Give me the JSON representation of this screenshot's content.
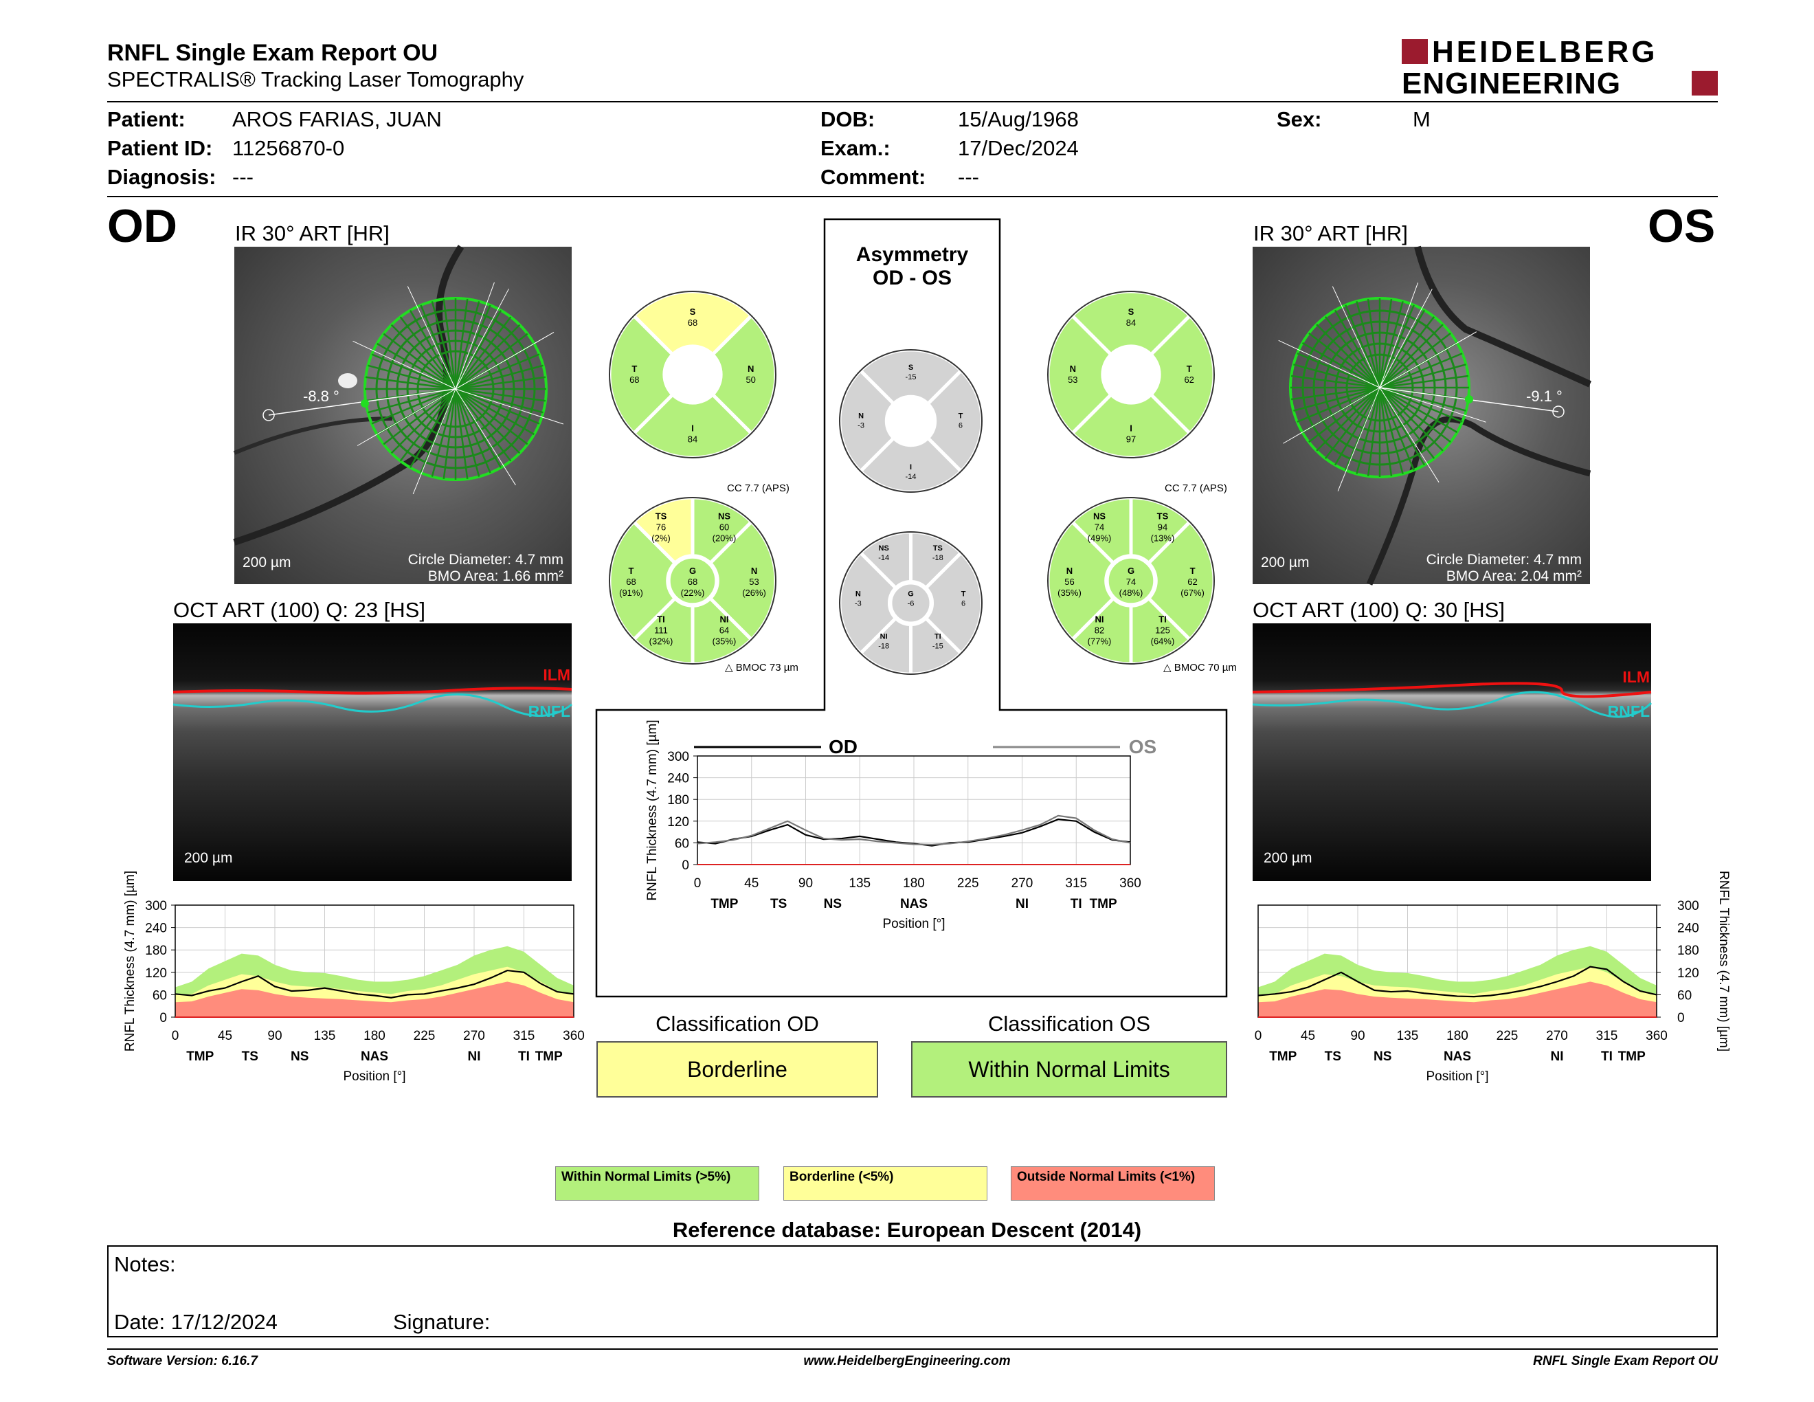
{
  "header": {
    "title": "RNFL Single Exam Report OU",
    "subtitle": "SPECTRALIS® Tracking Laser Tomography",
    "logo_line1": "HEIDELBERG",
    "logo_line2": "ENGINEERING"
  },
  "patient": {
    "patient_label": "Patient:",
    "patient": "AROS FARIAS, JUAN",
    "id_label": "Patient ID:",
    "id": "11256870-0",
    "diagnosis_label": "Diagnosis:",
    "diagnosis": "---",
    "dob_label": "DOB:",
    "dob": "15/Aug/1968",
    "exam_label": "Exam.:",
    "exam": "17/Dec/2024",
    "comment_label": "Comment:",
    "comment": "---",
    "sex_label": "Sex:",
    "sex": "M"
  },
  "od": {
    "eye": "OD",
    "ir_title": "IR 30° ART [HR]",
    "angle": "-8.8 °",
    "scale": "200 µm",
    "circle_diameter": "Circle Diameter: 4.7 mm",
    "bmo_area": "BMO Area: 1.66 mm²",
    "oct_title": "OCT ART (100) Q: 23 [HS]",
    "oct_scale": "200 µm",
    "classification_title": "Classification OD",
    "classification": "Borderline",
    "cc": "CC 7.7 (APS)",
    "bmoc": "BMOC 73 µm",
    "quad": {
      "S": "68",
      "T": "68",
      "N": "50",
      "I": "84"
    },
    "sectors": {
      "TS": [
        "TS",
        "76",
        "(2%)"
      ],
      "NS": [
        "NS",
        "60",
        "(20%)"
      ],
      "T": [
        "T",
        "68",
        "(91%)"
      ],
      "G": [
        "G",
        "68",
        "(22%)"
      ],
      "N": [
        "N",
        "53",
        "(26%)"
      ],
      "TI": [
        "TI",
        "111",
        "(32%)"
      ],
      "NI": [
        "NI",
        "64",
        "(35%)"
      ]
    }
  },
  "os": {
    "eye": "OS",
    "ir_title": "IR 30° ART [HR]",
    "angle": "-9.1 °",
    "scale": "200 µm",
    "circle_diameter": "Circle Diameter: 4.7 mm",
    "bmo_area": "BMO Area: 2.04 mm²",
    "oct_title": "OCT ART (100) Q: 30 [HS]",
    "oct_scale": "200 µm",
    "classification_title": "Classification OS",
    "classification": "Within Normal Limits",
    "cc": "CC 7.7 (APS)",
    "bmoc": "BMOC 70 µm",
    "quad": {
      "S": "84",
      "N": "53",
      "T": "62",
      "I": "97"
    },
    "sectors": {
      "NS": [
        "NS",
        "74",
        "(49%)"
      ],
      "TS": [
        "TS",
        "94",
        "(13%)"
      ],
      "N": [
        "N",
        "56",
        "(35%)"
      ],
      "G": [
        "G",
        "74",
        "(48%)"
      ],
      "T": [
        "T",
        "62",
        "(67%)"
      ],
      "NI": [
        "NI",
        "82",
        "(77%)"
      ],
      "TI": [
        "TI",
        "125",
        "(64%)"
      ]
    }
  },
  "asym": {
    "title1": "Asymmetry",
    "title2": "OD - OS",
    "quad": {
      "S": "-15",
      "N": "-3",
      "T": "6",
      "I": "-14"
    },
    "sectors": {
      "NS": [
        "NS",
        "-14"
      ],
      "TS": [
        "TS",
        "-18"
      ],
      "N": [
        "N",
        "-3"
      ],
      "G": [
        "G",
        "-6"
      ],
      "T": [
        "T",
        "6"
      ],
      "NI": [
        "NI",
        "-18"
      ],
      "TI": [
        "TI",
        "-15"
      ]
    }
  },
  "layer_labels": {
    "ilm": "ILM",
    "rnfl": "RNFL"
  },
  "chart_data": [
    {
      "type": "line",
      "name": "OD RNFL profile",
      "x": [
        0,
        15,
        30,
        45,
        60,
        75,
        90,
        105,
        120,
        135,
        150,
        165,
        180,
        195,
        210,
        225,
        240,
        255,
        270,
        285,
        300,
        315,
        330,
        345,
        360
      ],
      "series": [
        {
          "name": "",
          "values": [
            62,
            58,
            70,
            78,
            95,
            110,
            82,
            70,
            72,
            78,
            70,
            62,
            58,
            52,
            60,
            62,
            70,
            78,
            88,
            105,
            125,
            120,
            90,
            68,
            62
          ]
        }
      ],
      "normal_band": {
        "upper": [
          80,
          95,
          130,
          150,
          170,
          165,
          140,
          125,
          120,
          118,
          110,
          100,
          95,
          95,
          100,
          110,
          125,
          140,
          165,
          180,
          190,
          175,
          140,
          105,
          85
        ],
        "borderline": [
          60,
          62,
          85,
          100,
          115,
          110,
          95,
          85,
          82,
          80,
          75,
          70,
          66,
          62,
          70,
          75,
          85,
          100,
          115,
          125,
          135,
          120,
          95,
          70,
          60
        ],
        "outside": [
          40,
          42,
          55,
          65,
          75,
          72,
          62,
          55,
          52,
          50,
          48,
          45,
          42,
          40,
          45,
          48,
          55,
          65,
          75,
          85,
          95,
          85,
          65,
          48,
          40
        ]
      },
      "xlabel": "Position [°]",
      "ylabel": "RNFL Thickness (4.7 mm) [µm]",
      "xticks": [
        0,
        45,
        90,
        135,
        180,
        225,
        270,
        315,
        360
      ],
      "yticks": [
        0,
        60,
        120,
        180,
        240,
        300
      ],
      "regions": [
        "TMP",
        "TS",
        "NS",
        "NAS",
        "NI",
        "TI",
        "TMP"
      ],
      "ylim": [
        0,
        300
      ],
      "xlim": [
        0,
        360
      ]
    },
    {
      "type": "line",
      "name": "OU comparison",
      "x": [
        0,
        15,
        30,
        45,
        60,
        75,
        90,
        105,
        120,
        135,
        150,
        165,
        180,
        195,
        210,
        225,
        240,
        255,
        270,
        285,
        300,
        315,
        330,
        345,
        360
      ],
      "series": [
        {
          "name": "OD",
          "values": [
            62,
            58,
            70,
            78,
            95,
            110,
            82,
            70,
            72,
            78,
            70,
            62,
            58,
            52,
            60,
            62,
            70,
            78,
            88,
            105,
            125,
            120,
            90,
            68,
            62
          ]
        },
        {
          "name": "OS",
          "values": [
            58,
            62,
            68,
            80,
            100,
            120,
            95,
            72,
            68,
            70,
            64,
            60,
            56,
            55,
            58,
            64,
            72,
            82,
            95,
            110,
            135,
            128,
            95,
            70,
            60
          ]
        }
      ],
      "xlabel": "Position [°]",
      "ylabel": "RNFL Thickness (4.7 mm) [µm]",
      "xticks": [
        0,
        45,
        90,
        135,
        180,
        225,
        270,
        315,
        360
      ],
      "yticks": [
        0,
        60,
        120,
        180,
        240,
        300
      ],
      "regions": [
        "TMP",
        "TS",
        "NS",
        "NAS",
        "NI",
        "TI",
        "TMP"
      ],
      "ylim": [
        0,
        300
      ],
      "xlim": [
        0,
        360
      ]
    },
    {
      "type": "line",
      "name": "OS RNFL profile",
      "x": [
        0,
        15,
        30,
        45,
        60,
        75,
        90,
        105,
        120,
        135,
        150,
        165,
        180,
        195,
        210,
        225,
        240,
        255,
        270,
        285,
        300,
        315,
        330,
        345,
        360
      ],
      "series": [
        {
          "name": "",
          "values": [
            58,
            62,
            68,
            80,
            100,
            120,
            95,
            72,
            68,
            70,
            64,
            60,
            56,
            55,
            58,
            64,
            72,
            82,
            95,
            110,
            135,
            128,
            95,
            70,
            60
          ]
        }
      ],
      "normal_band": {
        "upper": [
          80,
          95,
          130,
          150,
          170,
          165,
          140,
          125,
          120,
          118,
          110,
          100,
          95,
          95,
          100,
          110,
          125,
          140,
          165,
          180,
          190,
          175,
          140,
          105,
          85
        ],
        "borderline": [
          60,
          62,
          85,
          100,
          115,
          110,
          95,
          85,
          82,
          80,
          75,
          70,
          66,
          62,
          70,
          75,
          85,
          100,
          115,
          125,
          135,
          120,
          95,
          70,
          60
        ],
        "outside": [
          40,
          42,
          55,
          65,
          75,
          72,
          62,
          55,
          52,
          50,
          48,
          45,
          42,
          40,
          45,
          48,
          55,
          65,
          75,
          85,
          95,
          85,
          65,
          48,
          40
        ]
      },
      "xlabel": "Position [°]",
      "ylabel": "RNFL Thickness (4.7 mm) [µm]",
      "xticks": [
        0,
        45,
        90,
        135,
        180,
        225,
        270,
        315,
        360
      ],
      "yticks": [
        0,
        60,
        120,
        180,
        240,
        300
      ],
      "regions": [
        "TMP",
        "TS",
        "NS",
        "NAS",
        "NI",
        "TI",
        "TMP"
      ],
      "ylim": [
        0,
        300
      ],
      "xlim": [
        0,
        360
      ]
    }
  ],
  "legend": {
    "wnl": "Within Normal Limits (>5%)",
    "bl": "Borderline (<5%)",
    "onl": "Outside Normal Limits (<1%)"
  },
  "reference": "Reference database: European Descent (2014)",
  "notes": {
    "notes_label": "Notes:",
    "date": "Date: 17/12/2024",
    "signature": "Signature:"
  },
  "footer": {
    "version": "Software Version: 6.16.7",
    "url": "www.HeidelbergEngineering.com",
    "report": "RNFL Single Exam Report OU"
  },
  "colors": {
    "green": "#b3f07c",
    "yellow": "#ffff99",
    "red": "#ff8c7c",
    "gray": "#d3d3d3",
    "logo_red": "#9b1b2e"
  }
}
